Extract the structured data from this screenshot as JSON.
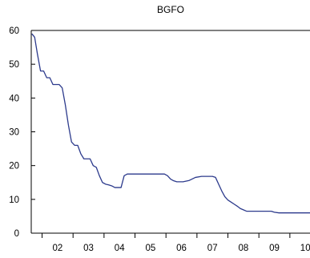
{
  "chart_data": {
    "type": "line",
    "title": "BGFO",
    "xlabel": "",
    "ylabel": "",
    "x_tick_labels": [
      "02",
      "03",
      "04",
      "05",
      "06",
      "07",
      "08",
      "09",
      "10"
    ],
    "y_ticks": [
      0,
      10,
      20,
      30,
      40,
      50,
      60
    ],
    "xlim": [
      2001.65,
      2010.65
    ],
    "ylim": [
      0,
      60
    ],
    "grid": false,
    "legend": "none",
    "series": [
      {
        "color": "#2c3a8c",
        "x": [
          2001.67,
          2001.76,
          2001.85,
          2001.95,
          2002.05,
          2002.15,
          2002.25,
          2002.35,
          2002.45,
          2002.55,
          2002.65,
          2002.75,
          2002.85,
          2002.95,
          2003.05,
          2003.15,
          2003.25,
          2003.35,
          2003.45,
          2003.55,
          2003.65,
          2003.75,
          2003.85,
          2003.95,
          2004.05,
          2004.15,
          2004.25,
          2004.35,
          2004.45,
          2004.55,
          2004.65,
          2004.75,
          2004.85,
          2005.05,
          2005.15,
          2005.25,
          2005.45,
          2005.65,
          2005.75,
          2005.85,
          2005.95,
          2006.05,
          2006.15,
          2006.25,
          2006.35,
          2006.55,
          2006.75,
          2006.95,
          2007.15,
          2007.35,
          2007.5,
          2007.6,
          2007.7,
          2007.8,
          2007.9,
          2008.0,
          2008.1,
          2008.2,
          2008.3,
          2008.4,
          2008.5,
          2008.6,
          2008.7,
          2008.8,
          2008.9,
          2009.0,
          2009.1,
          2009.2,
          2009.3,
          2009.4,
          2009.5,
          2009.65,
          2009.8,
          2009.95,
          2010.1,
          2010.25,
          2010.4,
          2010.5,
          2010.6,
          2010.65
        ],
        "values": [
          59,
          58,
          53,
          48,
          48,
          46,
          46,
          44,
          44,
          44,
          43,
          38,
          32,
          27,
          26,
          26,
          23.5,
          22,
          22,
          22,
          20,
          19.5,
          17,
          15,
          14.5,
          14.3,
          14,
          13.5,
          13.5,
          13.5,
          17,
          17.5,
          17.5,
          17.5,
          17.5,
          17.5,
          17.5,
          17.5,
          17.5,
          17.5,
          17.5,
          17,
          16,
          15.5,
          15.2,
          15.2,
          15.6,
          16.5,
          16.8,
          16.8,
          16.8,
          16.5,
          14.5,
          12.5,
          10.8,
          9.8,
          9.2,
          8.6,
          8.0,
          7.3,
          6.9,
          6.5,
          6.5,
          6.5,
          6.5,
          6.5,
          6.5,
          6.5,
          6.5,
          6.5,
          6.2,
          6.0,
          6.0,
          6.0,
          6.0,
          6.0,
          6.0,
          6.0,
          6.0,
          6.0
        ]
      }
    ]
  }
}
